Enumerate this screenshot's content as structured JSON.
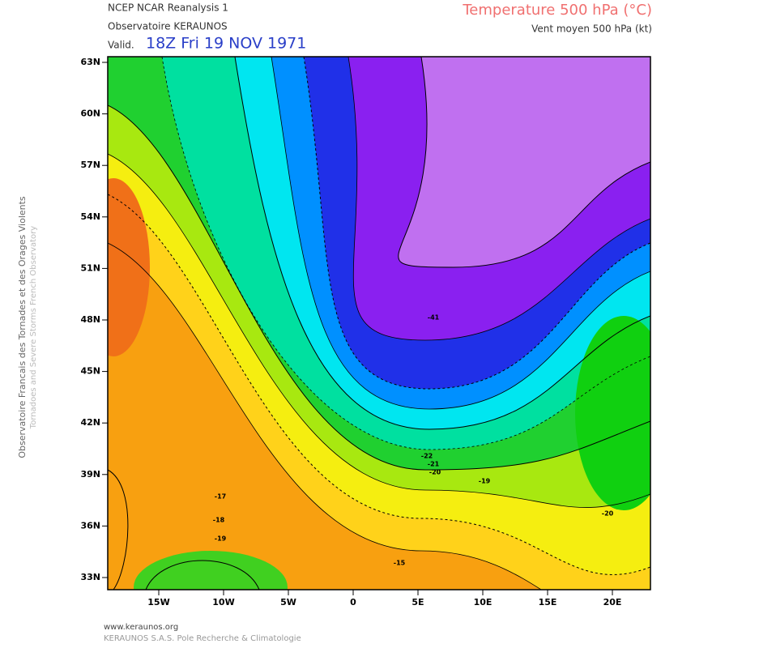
{
  "header": {
    "source": "NCEP NCAR Reanalysis 1",
    "provider": "Observatoire KERAUNOS",
    "valid_label": "Valid.",
    "valid_time": "18Z Fri 19 NOV 1971",
    "title": "Temperature 500 hPa (°C)",
    "subtitle": "Vent moyen 500 hPa (kt)"
  },
  "side_text": {
    "french": "Observatoire Francais des Tornades et des Orages Violents",
    "english": "Tornadoes and Severe Storms French Observatory"
  },
  "axes": {
    "latitudes": [
      "63N",
      "60N",
      "57N",
      "54N",
      "51N",
      "48N",
      "45N",
      "42N",
      "39N",
      "36N",
      "33N"
    ],
    "longitudes": [
      "15W",
      "10W",
      "5W",
      "0",
      "5E",
      "10E",
      "15E",
      "20E"
    ]
  },
  "contour_labels": [
    "-41",
    "-20",
    "-19",
    "-20",
    "-17",
    "-18",
    "-19",
    "-15",
    "-21",
    "-22"
  ],
  "footer": {
    "url": "www.keraunos.org",
    "company": "KERAUNOS S.A.S. Pole Recherche & Climatologie"
  }
}
